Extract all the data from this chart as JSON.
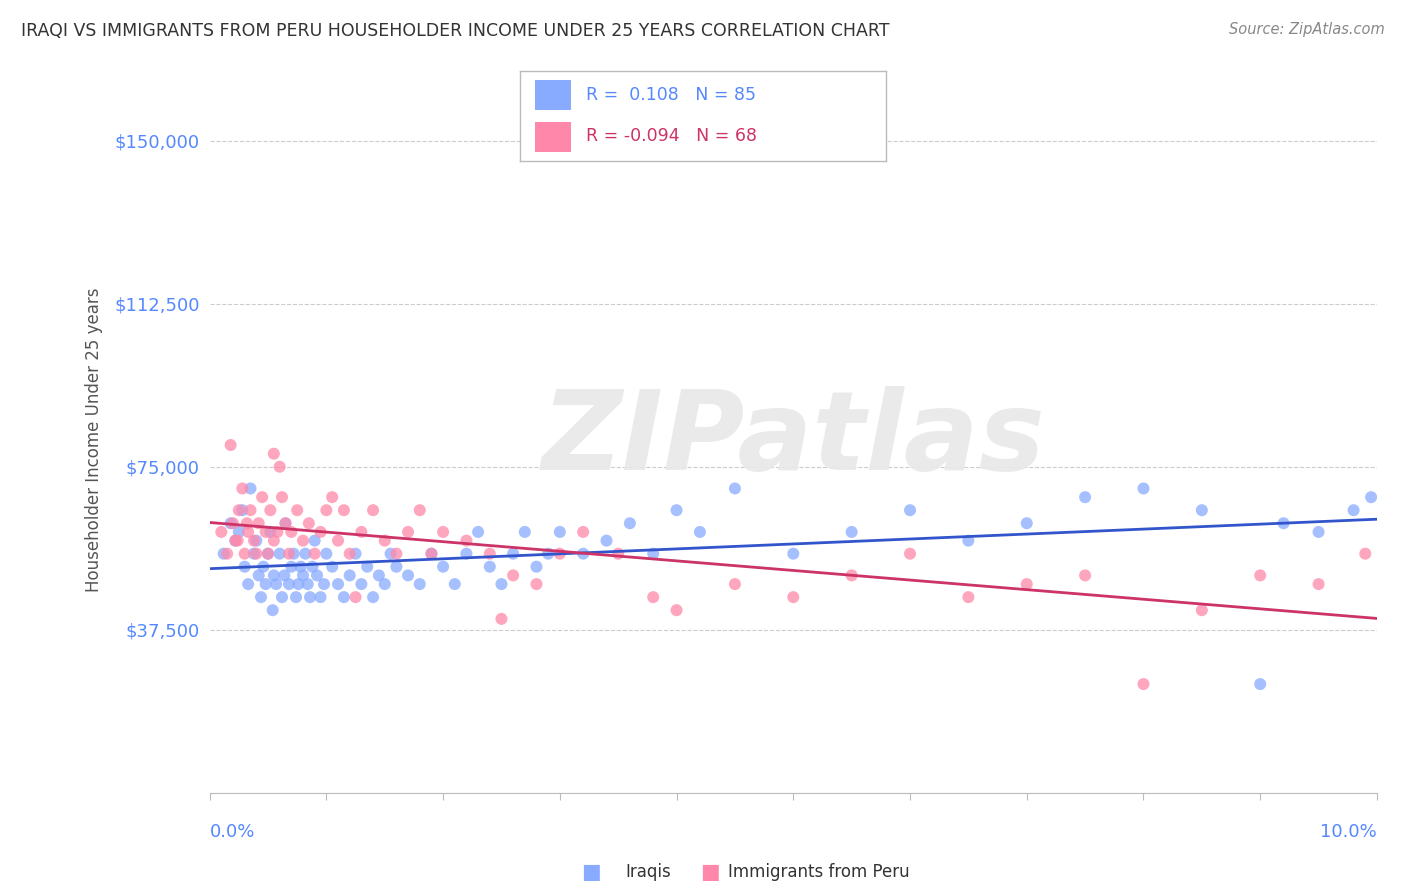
{
  "title": "IRAQI VS IMMIGRANTS FROM PERU HOUSEHOLDER INCOME UNDER 25 YEARS CORRELATION CHART",
  "source": "Source: ZipAtlas.com",
  "ylabel": "Householder Income Under 25 years",
  "xlim": [
    0.0,
    10.0
  ],
  "ylim": [
    0,
    162500
  ],
  "yticks": [
    0,
    37500,
    75000,
    112500,
    150000
  ],
  "ytick_labels": [
    "",
    "$37,500",
    "$75,000",
    "$112,500",
    "$150,000"
  ],
  "series1_name": "Iraqis",
  "series1_color": "#88aaff",
  "series2_name": "Immigrants from Peru",
  "series2_color": "#ff88aa",
  "trend1_color": "#3355cc",
  "trend2_color": "#cc3366",
  "r1": 0.108,
  "n1": 85,
  "r2": -0.094,
  "n2": 68,
  "background_color": "#ffffff",
  "grid_color": "#cccccc",
  "title_color": "#333333",
  "tick_label_color": "#5588ff",
  "watermark_color": "#e8e8e8",
  "iraqis_x": [
    0.12,
    0.18,
    0.22,
    0.25,
    0.28,
    0.3,
    0.33,
    0.35,
    0.38,
    0.4,
    0.42,
    0.44,
    0.46,
    0.48,
    0.5,
    0.52,
    0.54,
    0.55,
    0.57,
    0.6,
    0.62,
    0.64,
    0.65,
    0.68,
    0.7,
    0.72,
    0.74,
    0.76,
    0.78,
    0.8,
    0.82,
    0.84,
    0.86,
    0.88,
    0.9,
    0.92,
    0.95,
    0.98,
    1.0,
    1.05,
    1.1,
    1.15,
    1.2,
    1.25,
    1.3,
    1.35,
    1.4,
    1.45,
    1.5,
    1.55,
    1.6,
    1.7,
    1.8,
    1.9,
    2.0,
    2.1,
    2.2,
    2.3,
    2.4,
    2.5,
    2.6,
    2.7,
    2.8,
    2.9,
    3.0,
    3.2,
    3.4,
    3.6,
    3.8,
    4.0,
    4.2,
    4.5,
    5.0,
    5.5,
    6.0,
    6.5,
    7.0,
    7.5,
    8.0,
    8.5,
    9.0,
    9.2,
    9.5,
    9.8,
    9.95
  ],
  "iraqis_y": [
    55000,
    62000,
    58000,
    60000,
    65000,
    52000,
    48000,
    70000,
    55000,
    58000,
    50000,
    45000,
    52000,
    48000,
    55000,
    60000,
    42000,
    50000,
    48000,
    55000,
    45000,
    50000,
    62000,
    48000,
    52000,
    55000,
    45000,
    48000,
    52000,
    50000,
    55000,
    48000,
    45000,
    52000,
    58000,
    50000,
    45000,
    48000,
    55000,
    52000,
    48000,
    45000,
    50000,
    55000,
    48000,
    52000,
    45000,
    50000,
    48000,
    55000,
    52000,
    50000,
    48000,
    55000,
    52000,
    48000,
    55000,
    60000,
    52000,
    48000,
    55000,
    60000,
    52000,
    55000,
    60000,
    55000,
    58000,
    62000,
    55000,
    65000,
    60000,
    70000,
    55000,
    60000,
    65000,
    58000,
    62000,
    68000,
    70000,
    65000,
    25000,
    62000,
    60000,
    65000,
    68000
  ],
  "peru_x": [
    0.1,
    0.15,
    0.2,
    0.22,
    0.25,
    0.28,
    0.3,
    0.33,
    0.35,
    0.38,
    0.4,
    0.42,
    0.45,
    0.48,
    0.5,
    0.52,
    0.55,
    0.58,
    0.6,
    0.62,
    0.65,
    0.68,
    0.7,
    0.75,
    0.8,
    0.85,
    0.9,
    0.95,
    1.0,
    1.1,
    1.2,
    1.3,
    1.4,
    1.5,
    1.6,
    1.7,
    1.8,
    1.9,
    2.0,
    2.2,
    2.4,
    2.6,
    2.8,
    3.0,
    3.2,
    3.5,
    3.8,
    4.0,
    4.5,
    5.0,
    5.5,
    6.0,
    6.5,
    7.0,
    7.5,
    8.0,
    8.5,
    9.0,
    9.5,
    9.9,
    0.18,
    0.24,
    0.32,
    0.55,
    1.05,
    1.15,
    1.25,
    2.5
  ],
  "peru_y": [
    60000,
    55000,
    62000,
    58000,
    65000,
    70000,
    55000,
    60000,
    65000,
    58000,
    55000,
    62000,
    68000,
    60000,
    55000,
    65000,
    58000,
    60000,
    75000,
    68000,
    62000,
    55000,
    60000,
    65000,
    58000,
    62000,
    55000,
    60000,
    65000,
    58000,
    55000,
    60000,
    65000,
    58000,
    55000,
    60000,
    65000,
    55000,
    60000,
    58000,
    55000,
    50000,
    48000,
    55000,
    60000,
    55000,
    45000,
    42000,
    48000,
    45000,
    50000,
    55000,
    45000,
    48000,
    50000,
    25000,
    42000,
    50000,
    48000,
    55000,
    80000,
    58000,
    62000,
    78000,
    68000,
    65000,
    45000,
    40000
  ]
}
